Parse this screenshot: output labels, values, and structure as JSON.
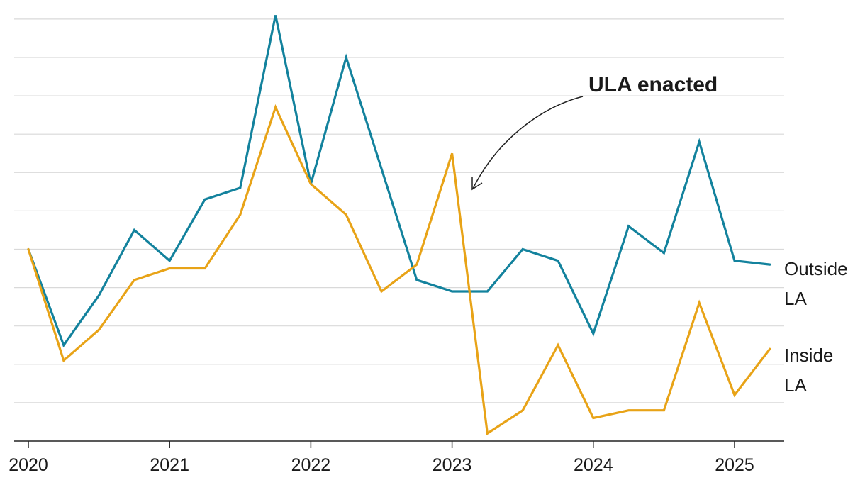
{
  "chart_data": {
    "type": "line",
    "title": "",
    "xlabel": "",
    "ylabel": "",
    "x": [
      2020.0,
      2020.25,
      2020.5,
      2020.75,
      2021.0,
      2021.25,
      2021.5,
      2021.75,
      2022.0,
      2022.25,
      2022.5,
      2022.75,
      2023.0,
      2023.25,
      2023.5,
      2023.75,
      2024.0,
      2024.25,
      2024.5,
      2024.75,
      2025.0,
      2025.25
    ],
    "xlim": [
      2019.9,
      2025.35
    ],
    "ylim": [
      -1,
      10.8
    ],
    "xticks": [
      2020,
      2021,
      2022,
      2023,
      2024,
      2025
    ],
    "xtick_labels": [
      "2020",
      "2021",
      "2022",
      "2023",
      "2024",
      "2025"
    ],
    "gridlines": [
      1,
      2,
      3,
      4,
      5,
      6,
      7,
      8,
      9,
      10,
      11
    ],
    "series": [
      {
        "name": "Outside LA",
        "label_lines": [
          "Outside",
          "LA"
        ],
        "color": "#13829d",
        "values": [
          5.0,
          2.5,
          3.8,
          5.5,
          4.7,
          6.3,
          6.6,
          11.1,
          6.7,
          10.0,
          7.1,
          4.2,
          3.9,
          3.9,
          5.0,
          4.7,
          2.8,
          5.6,
          4.9,
          7.8,
          4.7,
          4.6
        ]
      },
      {
        "name": "Inside LA",
        "label_lines": [
          "Inside",
          "LA"
        ],
        "color": "#e8a317",
        "values": [
          5.0,
          2.1,
          2.9,
          4.2,
          4.5,
          4.5,
          5.9,
          8.7,
          6.7,
          5.9,
          3.9,
          4.6,
          7.5,
          0.2,
          0.8,
          2.5,
          0.6,
          0.8,
          0.8,
          3.6,
          1.2,
          2.4
        ]
      }
    ],
    "annotations": [
      {
        "text": "ULA enacted",
        "x": 2023.15,
        "y": 6.8
      }
    ]
  }
}
